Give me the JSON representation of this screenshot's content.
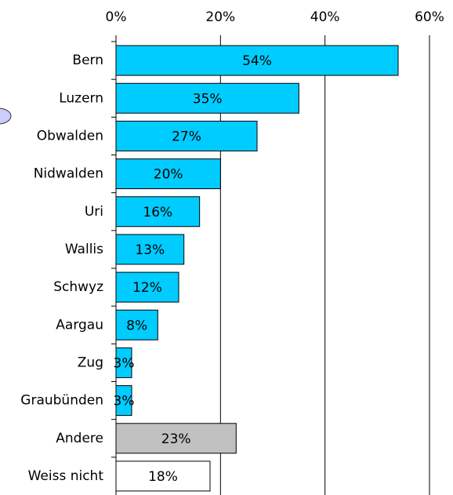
{
  "chart_data": {
    "type": "barh",
    "categories": [
      "Bern",
      "Luzern",
      "Obwalden",
      "Nidwalden",
      "Uri",
      "Wallis",
      "Schwyz",
      "Aargau",
      "Zug",
      "Graubünden",
      "Andere",
      "Weiss nicht"
    ],
    "values": [
      54,
      35,
      27,
      20,
      16,
      13,
      12,
      8,
      3,
      3,
      23,
      18
    ],
    "value_labels": [
      "54%",
      "35%",
      "27%",
      "20%",
      "16%",
      "13%",
      "12%",
      "8%",
      "3%",
      "3%",
      "23%",
      "18%"
    ],
    "colors": [
      "#00ccff",
      "#00ccff",
      "#00ccff",
      "#00ccff",
      "#00ccff",
      "#00ccff",
      "#00ccff",
      "#00ccff",
      "#00ccff",
      "#00ccff",
      "#c0c0c0",
      "#ffffff"
    ],
    "xlim": [
      0,
      60
    ],
    "xticks": [
      {
        "value": 0,
        "label": "0%"
      },
      {
        "value": 20,
        "label": "20%"
      },
      {
        "value": 40,
        "label": "40%"
      },
      {
        "value": 60,
        "label": "60%"
      }
    ],
    "grid": true
  }
}
